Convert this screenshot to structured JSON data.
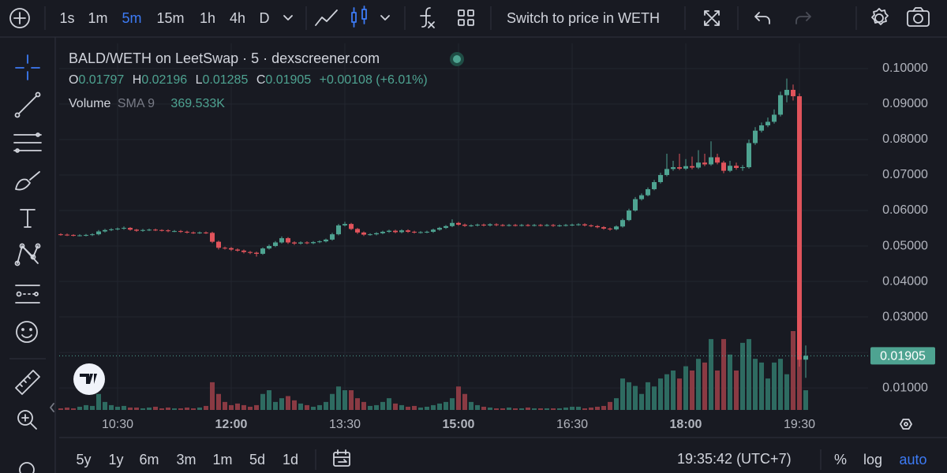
{
  "toolbar": {
    "intervals": [
      "1s",
      "1m",
      "5m",
      "15m",
      "1h",
      "4h",
      "D"
    ],
    "active_interval": "5m",
    "switch_label": "Switch to price in WETH"
  },
  "bottom_bar": {
    "ranges": [
      "5y",
      "1y",
      "6m",
      "3m",
      "1m",
      "5d",
      "1d"
    ],
    "clock": "19:35:42 (UTC+7)",
    "scale_options": [
      "%",
      "log",
      "auto"
    ],
    "active_scale": "auto"
  },
  "chart_data": {
    "type": "candlestick",
    "title": "BALD/WETH on LeetSwap · 5 · dexscreener.com",
    "ohlc_letters": [
      "O",
      "H",
      "L",
      "C"
    ],
    "change_label": "+0.00108 (+6.01%)",
    "volume_title": "Volume",
    "volume_indicator": "SMA 9",
    "volume_legend_value": "369.533K",
    "x": [
      "09:45",
      "09:50",
      "09:55",
      "10:00",
      "10:05",
      "10:10",
      "10:15",
      "10:20",
      "10:25",
      "10:30",
      "10:35",
      "10:40",
      "10:45",
      "10:50",
      "10:55",
      "11:00",
      "11:05",
      "11:10",
      "11:15",
      "11:20",
      "11:25",
      "11:30",
      "11:35",
      "11:40",
      "11:45",
      "11:50",
      "11:55",
      "12:00",
      "12:05",
      "12:10",
      "12:15",
      "12:20",
      "12:25",
      "12:30",
      "12:35",
      "12:40",
      "12:45",
      "12:50",
      "12:55",
      "13:00",
      "13:05",
      "13:10",
      "13:15",
      "13:20",
      "13:25",
      "13:30",
      "13:35",
      "13:40",
      "13:45",
      "13:50",
      "13:55",
      "14:00",
      "14:05",
      "14:10",
      "14:15",
      "14:20",
      "14:25",
      "14:30",
      "14:35",
      "14:40",
      "14:45",
      "14:50",
      "14:55",
      "15:00",
      "15:05",
      "15:10",
      "15:15",
      "15:20",
      "15:25",
      "15:30",
      "15:35",
      "15:40",
      "15:45",
      "15:50",
      "15:55",
      "16:00",
      "16:05",
      "16:10",
      "16:15",
      "16:20",
      "16:25",
      "16:30",
      "16:35",
      "16:40",
      "16:45",
      "16:50",
      "16:55",
      "17:00",
      "17:05",
      "17:10",
      "17:15",
      "17:20",
      "17:25",
      "17:30",
      "17:35",
      "17:40",
      "17:45",
      "17:50",
      "17:55",
      "18:00",
      "18:05",
      "18:10",
      "18:15",
      "18:20",
      "18:25",
      "18:30",
      "18:35",
      "18:40",
      "18:45",
      "18:50",
      "18:55",
      "19:00",
      "19:05",
      "19:10",
      "19:15",
      "19:20",
      "19:25",
      "19:30",
      "19:35"
    ],
    "open": [
      0.0533,
      0.0532,
      0.0531,
      0.053,
      0.053,
      0.0531,
      0.0533,
      0.0541,
      0.0545,
      0.0547,
      0.0549,
      0.0551,
      0.0546,
      0.0543,
      0.0545,
      0.0546,
      0.0545,
      0.0544,
      0.0542,
      0.0542,
      0.054,
      0.0538,
      0.0537,
      0.0538,
      0.0537,
      0.0512,
      0.0495,
      0.0494,
      0.049,
      0.0487,
      0.0483,
      0.0481,
      0.0478,
      0.0493,
      0.05,
      0.051,
      0.0522,
      0.051,
      0.0507,
      0.051,
      0.0508,
      0.0511,
      0.0513,
      0.0518,
      0.0533,
      0.0558,
      0.0562,
      0.0548,
      0.0538,
      0.0532,
      0.0533,
      0.0536,
      0.054,
      0.0543,
      0.0539,
      0.0544,
      0.054,
      0.0538,
      0.0539,
      0.054,
      0.0546,
      0.0551,
      0.0556,
      0.0565,
      0.056,
      0.0557,
      0.0558,
      0.056,
      0.0558,
      0.0561,
      0.0559,
      0.0558,
      0.0559,
      0.0558,
      0.0559,
      0.0558,
      0.0559,
      0.0558,
      0.0559,
      0.0557,
      0.0558,
      0.0559,
      0.056,
      0.0561,
      0.0558,
      0.0556,
      0.0553,
      0.0549,
      0.0547,
      0.0555,
      0.0573,
      0.06,
      0.0632,
      0.0643,
      0.066,
      0.068,
      0.07,
      0.0717,
      0.0722,
      0.0718,
      0.0725,
      0.0721,
      0.0735,
      0.073,
      0.075,
      0.0735,
      0.0712,
      0.0726,
      0.072,
      0.0722,
      0.079,
      0.0825,
      0.084,
      0.085,
      0.087,
      0.0925,
      0.094,
      0.0922,
      0.01797
    ],
    "high": [
      0.0536,
      0.0535,
      0.0533,
      0.0533,
      0.0534,
      0.0536,
      0.0545,
      0.0548,
      0.055,
      0.0552,
      0.0555,
      0.0553,
      0.0548,
      0.0548,
      0.0549,
      0.0549,
      0.0547,
      0.0547,
      0.0545,
      0.0545,
      0.0543,
      0.0541,
      0.0541,
      0.0541,
      0.054,
      0.0515,
      0.0498,
      0.0497,
      0.0493,
      0.049,
      0.0486,
      0.0484,
      0.0496,
      0.0504,
      0.0514,
      0.0527,
      0.0525,
      0.0513,
      0.0513,
      0.0513,
      0.0514,
      0.0516,
      0.0521,
      0.0537,
      0.0562,
      0.0568,
      0.0565,
      0.0551,
      0.0541,
      0.0536,
      0.0539,
      0.0543,
      0.0546,
      0.0546,
      0.0547,
      0.0547,
      0.0543,
      0.0542,
      0.0543,
      0.0549,
      0.0554,
      0.0559,
      0.0575,
      0.0568,
      0.0563,
      0.0561,
      0.0563,
      0.0563,
      0.0564,
      0.0564,
      0.0562,
      0.0562,
      0.0562,
      0.0562,
      0.0562,
      0.0562,
      0.0562,
      0.0562,
      0.0562,
      0.0561,
      0.0562,
      0.0563,
      0.0564,
      0.0564,
      0.0561,
      0.0559,
      0.0556,
      0.0552,
      0.0558,
      0.0577,
      0.0605,
      0.0638,
      0.0648,
      0.0665,
      0.0686,
      0.0706,
      0.076,
      0.074,
      0.076,
      0.0745,
      0.0752,
      0.077,
      0.076,
      0.0795,
      0.076,
      0.074,
      0.074,
      0.0735,
      0.0728,
      0.08,
      0.0835,
      0.0848,
      0.0862,
      0.0885,
      0.0935,
      0.0972,
      0.0955,
      0.093,
      0.02196
    ],
    "low": [
      0.0529,
      0.0528,
      0.0527,
      0.0527,
      0.0527,
      0.0528,
      0.053,
      0.0538,
      0.0542,
      0.0544,
      0.0546,
      0.0543,
      0.054,
      0.054,
      0.0542,
      0.0542,
      0.0541,
      0.0539,
      0.0539,
      0.0537,
      0.0535,
      0.0534,
      0.0534,
      0.0534,
      0.0508,
      0.049,
      0.049,
      0.0486,
      0.0484,
      0.0479,
      0.0477,
      0.047,
      0.0475,
      0.049,
      0.0497,
      0.0507,
      0.0506,
      0.0503,
      0.0504,
      0.0505,
      0.0505,
      0.0508,
      0.051,
      0.0515,
      0.053,
      0.0555,
      0.0545,
      0.0534,
      0.0528,
      0.0529,
      0.053,
      0.0533,
      0.0537,
      0.0536,
      0.0536,
      0.0537,
      0.0535,
      0.0535,
      0.0536,
      0.0537,
      0.0543,
      0.0548,
      0.0553,
      0.0557,
      0.0554,
      0.0554,
      0.0555,
      0.0555,
      0.0555,
      0.0556,
      0.0555,
      0.0555,
      0.0555,
      0.0555,
      0.0555,
      0.0555,
      0.0555,
      0.0555,
      0.0554,
      0.0554,
      0.0555,
      0.0556,
      0.0557,
      0.0555,
      0.0553,
      0.055,
      0.0546,
      0.0543,
      0.0544,
      0.0552,
      0.057,
      0.0597,
      0.0628,
      0.064,
      0.0657,
      0.0676,
      0.0696,
      0.0712,
      0.0714,
      0.0714,
      0.0716,
      0.0717,
      0.0725,
      0.0726,
      0.073,
      0.0705,
      0.0708,
      0.0715,
      0.0712,
      0.0718,
      0.0785,
      0.082,
      0.0835,
      0.0845,
      0.0865,
      0.0905,
      0.091,
      0.016,
      0.01285
    ],
    "close": [
      0.0532,
      0.0531,
      0.053,
      0.053,
      0.0531,
      0.0533,
      0.0541,
      0.0545,
      0.0547,
      0.0549,
      0.0551,
      0.0546,
      0.0543,
      0.0545,
      0.0546,
      0.0545,
      0.0544,
      0.0542,
      0.0542,
      0.054,
      0.0538,
      0.0537,
      0.0538,
      0.0537,
      0.0512,
      0.0495,
      0.0494,
      0.049,
      0.0487,
      0.0483,
      0.0481,
      0.0478,
      0.0493,
      0.05,
      0.051,
      0.0522,
      0.051,
      0.0507,
      0.051,
      0.0508,
      0.0511,
      0.0513,
      0.0518,
      0.0533,
      0.0558,
      0.0562,
      0.0548,
      0.0538,
      0.0532,
      0.0533,
      0.0536,
      0.054,
      0.0543,
      0.0539,
      0.0544,
      0.054,
      0.0538,
      0.0539,
      0.054,
      0.0546,
      0.0551,
      0.0556,
      0.0565,
      0.056,
      0.0557,
      0.0558,
      0.056,
      0.0558,
      0.0561,
      0.0559,
      0.0558,
      0.0559,
      0.0558,
      0.0559,
      0.0558,
      0.0559,
      0.0558,
      0.0559,
      0.0557,
      0.0558,
      0.0559,
      0.056,
      0.0561,
      0.0558,
      0.0556,
      0.0553,
      0.0549,
      0.0547,
      0.0555,
      0.0573,
      0.06,
      0.0632,
      0.0643,
      0.066,
      0.068,
      0.07,
      0.0717,
      0.0722,
      0.0718,
      0.0725,
      0.0721,
      0.0735,
      0.073,
      0.075,
      0.0735,
      0.0712,
      0.0726,
      0.072,
      0.0722,
      0.079,
      0.0825,
      0.084,
      0.085,
      0.087,
      0.0925,
      0.094,
      0.0922,
      0.01797,
      0.01905
    ],
    "volume": [
      30000,
      45000,
      30000,
      60000,
      90000,
      75000,
      300000,
      150000,
      90000,
      60000,
      75000,
      45000,
      45000,
      30000,
      45000,
      60000,
      30000,
      45000,
      30000,
      30000,
      45000,
      30000,
      45000,
      75000,
      520000,
      300000,
      150000,
      90000,
      120000,
      90000,
      60000,
      90000,
      300000,
      370000,
      150000,
      220000,
      260000,
      180000,
      120000,
      90000,
      60000,
      90000,
      150000,
      300000,
      440000,
      370000,
      370000,
      220000,
      150000,
      75000,
      90000,
      150000,
      220000,
      120000,
      90000,
      60000,
      75000,
      45000,
      60000,
      90000,
      120000,
      150000,
      220000,
      440000,
      300000,
      150000,
      90000,
      60000,
      45000,
      30000,
      30000,
      45000,
      30000,
      30000,
      45000,
      30000,
      30000,
      30000,
      30000,
      30000,
      45000,
      60000,
      60000,
      30000,
      45000,
      60000,
      75000,
      150000,
      220000,
      590000,
      520000,
      450000,
      300000,
      520000,
      440000,
      590000,
      670000,
      740000,
      590000,
      820000,
      740000,
      960000,
      890000,
      1330000,
      740000,
      1330000,
      1040000,
      740000,
      1260000,
      1330000,
      960000,
      890000,
      590000,
      890000,
      960000,
      670000,
      1480000,
      1330000,
      369533
    ],
    "ylim": [
      0.0038,
      0.1071
    ],
    "yticks": [
      {
        "value": 0.01,
        "label": "0.01000"
      },
      {
        "value": 0.02,
        "label": "0.02000"
      },
      {
        "value": 0.03,
        "label": "0.03000"
      },
      {
        "value": 0.04,
        "label": "0.04000"
      },
      {
        "value": 0.05,
        "label": "0.05000"
      },
      {
        "value": 0.06,
        "label": "0.06000"
      },
      {
        "value": 0.07,
        "label": "0.07000"
      },
      {
        "value": 0.08,
        "label": "0.08000"
      },
      {
        "value": 0.09,
        "label": "0.09000"
      },
      {
        "value": 0.1,
        "label": "0.10000"
      }
    ],
    "xticks": [
      "10:30",
      "12:00",
      "13:30",
      "15:00",
      "16:30",
      "18:00",
      "19:30"
    ],
    "grid": true,
    "up_color": "#4ea391",
    "down_color": "#e0535b",
    "volume_up_color": "#2e6b61",
    "volume_down_color": "#8a3a43"
  }
}
